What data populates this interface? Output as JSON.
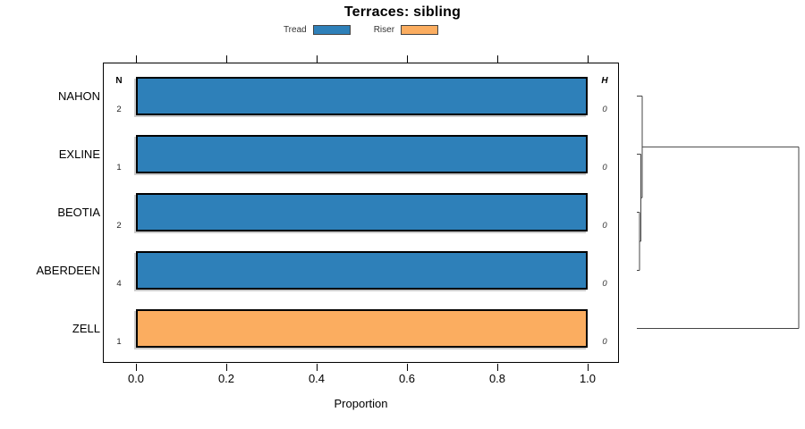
{
  "title": "Terraces: sibling",
  "chart_data": {
    "type": "bar",
    "orientation": "horizontal",
    "stacked": true,
    "title": "Terraces: sibling",
    "xlabel": "Proportion",
    "xlim": [
      0,
      1
    ],
    "xtick_values": [
      0,
      0.2,
      0.4,
      0.6,
      0.8,
      1.0
    ],
    "xtick_labels": [
      "0.0",
      "0.2",
      "0.4",
      "0.6",
      "0.8",
      "1.0"
    ],
    "grid": false,
    "legend_position": "top",
    "categories": [
      "NAHON",
      "EXLINE",
      "BEOTIA",
      "ABERDEEN",
      "ZELL"
    ],
    "series": [
      {
        "name": "Tread",
        "color": "#2E80B9",
        "values": [
          1,
          1,
          1,
          1,
          0
        ]
      },
      {
        "name": "Riser",
        "color": "#FBAD60",
        "values": [
          0,
          0,
          0,
          0,
          1
        ]
      }
    ],
    "annotations": {
      "n_column": {
        "header": "N",
        "values": [
          "2",
          "1",
          "2",
          "4",
          "1"
        ]
      },
      "h_column": {
        "header": "H",
        "values": [
          "0",
          "0",
          "0",
          "0",
          "0"
        ]
      }
    },
    "dendrogram": {
      "leaf_order": [
        "NAHON",
        "EXLINE",
        "BEOTIA",
        "ABERDEEN",
        "ZELL"
      ],
      "merges": [
        {
          "children": [
            "BEOTIA",
            "ABERDEEN"
          ],
          "height": 0
        },
        {
          "children": [
            "EXLINE",
            "m0"
          ],
          "height": 0
        },
        {
          "children": [
            "NAHON",
            "m1"
          ],
          "height": 0
        },
        {
          "children": [
            "m2",
            "ZELL"
          ],
          "height": 1
        }
      ],
      "max_height": 1
    }
  }
}
